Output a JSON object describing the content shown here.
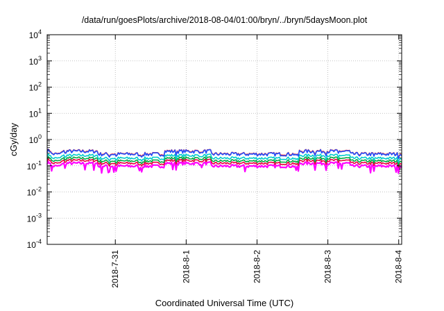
{
  "chart_data": {
    "type": "line",
    "title": "/data/run/goesPlots/archive/2018-08-04/01:00/bryn/../bryn/5daysMoon.plot",
    "xlabel": "Coordinated Universal Time (UTC)",
    "ylabel": "cGy/day",
    "yscale": "log",
    "ylim": [
      0.0001,
      10000
    ],
    "y_ticks": [
      {
        "value": 0.0001,
        "base": "10",
        "exp": "-4"
      },
      {
        "value": 0.001,
        "base": "10",
        "exp": "-3"
      },
      {
        "value": 0.01,
        "base": "10",
        "exp": "-2"
      },
      {
        "value": 0.1,
        "base": "10",
        "exp": "-1"
      },
      {
        "value": 1,
        "base": "10",
        "exp": "0"
      },
      {
        "value": 10,
        "base": "10",
        "exp": "1"
      },
      {
        "value": 100,
        "base": "10",
        "exp": "2"
      },
      {
        "value": 1000,
        "base": "10",
        "exp": "3"
      },
      {
        "value": 10000,
        "base": "10",
        "exp": "4"
      }
    ],
    "xlim": [
      "2018-07-30 00:55",
      "2018-08-04 01:00"
    ],
    "x_ticks": [
      "2018-7-31",
      "2018-8-1",
      "2018-8-2",
      "2018-8-3",
      "2018-8-4"
    ],
    "grid": true,
    "legend": "none",
    "series": [
      {
        "color": "#ff00ff",
        "level": 0.105,
        "spread": 0.13,
        "dips": true
      },
      {
        "color": "#e8003c",
        "level": 0.135,
        "spread": 0.12,
        "dips": false
      },
      {
        "color": "#00aa44",
        "level": 0.165,
        "spread": 0.12,
        "dips": false
      },
      {
        "color": "#00cccc",
        "level": 0.21,
        "spread": 0.12,
        "dips": false
      },
      {
        "color": "#ff2020",
        "level": 0.31,
        "spread": 0.14,
        "dips": false
      },
      {
        "color": "#2050ff",
        "level": 0.3,
        "spread": 0.16,
        "dips": false
      }
    ],
    "high_periods_days": [
      [
        0.2,
        0.72
      ],
      [
        1.65,
        2.32
      ],
      [
        3.55,
        4.28
      ]
    ]
  }
}
